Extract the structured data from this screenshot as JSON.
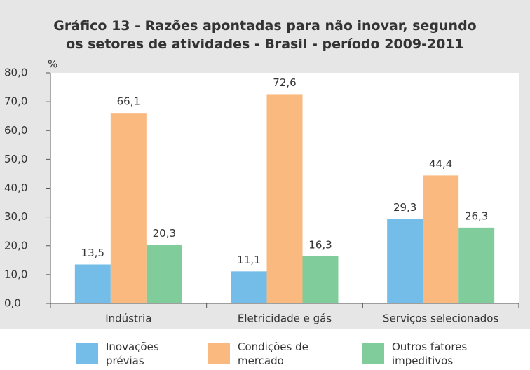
{
  "chart_data": {
    "type": "bar",
    "title": [
      "Gráfico 13 - Razões apontadas para não inovar, segundo",
      "os setores de atividades - Brasil - período 2009-2011"
    ],
    "y_label": "%",
    "categories": [
      "Indústria",
      "Eletricidade e gás",
      "Serviços selecionados"
    ],
    "series": [
      {
        "name": "Inovações prévias",
        "color": "#74bde8",
        "values": [
          13.5,
          11.1,
          29.3
        ],
        "value_labels": [
          "13,5",
          "11,1",
          "29,3"
        ]
      },
      {
        "name": "Condições de mercado",
        "color": "#f9b97f",
        "values": [
          66.1,
          72.6,
          44.4
        ],
        "value_labels": [
          "66,1",
          "72,6",
          "44,4"
        ]
      },
      {
        "name": "Outros fatores impeditivos",
        "color": "#80cc9a",
        "values": [
          20.3,
          16.3,
          26.3
        ],
        "value_labels": [
          "20,3",
          "16,3",
          "26,3"
        ]
      }
    ],
    "ylim": [
      0,
      80
    ],
    "yticks": [
      {
        "value": 0,
        "label": "0,0"
      },
      {
        "value": 10,
        "label": "10,0"
      },
      {
        "value": 20,
        "label": "20,0"
      },
      {
        "value": 30,
        "label": "30,0"
      },
      {
        "value": 40,
        "label": "40,0"
      },
      {
        "value": 50,
        "label": "50,0"
      },
      {
        "value": 60,
        "label": "60,0"
      },
      {
        "value": 70,
        "label": "70,0"
      },
      {
        "value": 80,
        "label": "80,0"
      }
    ]
  }
}
